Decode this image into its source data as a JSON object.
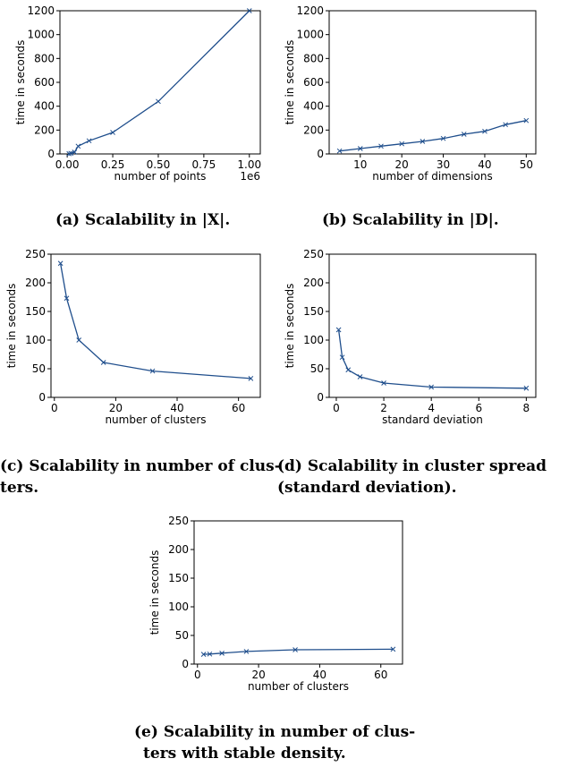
{
  "captions": {
    "a": "(a) Scalability in |X|.",
    "b": "(b) Scalability in |D|.",
    "c_line1": "(c) Scalability in number of clus-",
    "c_line2": "ters.",
    "d_line1": "(d) Scalability in cluster spread",
    "d_line2": "(standard deviation).",
    "e_line1": "(e) Scalability in number of clus-",
    "e_line2": "ters with stable density."
  },
  "colors": {
    "series": "#1f4e8c",
    "axis": "#000000"
  },
  "chart_data": [
    {
      "id": "a",
      "type": "line",
      "xlabel": "number of points",
      "ylabel": "time in seconds",
      "xlim": [
        -0.04,
        1.06
      ],
      "ylim": [
        0,
        1200
      ],
      "xticks": [
        0.0,
        0.25,
        0.5,
        0.75,
        1.0
      ],
      "xtick_labels": [
        "0.00",
        "0.25",
        "0.50",
        "0.75",
        "1.00"
      ],
      "yticks": [
        0,
        200,
        400,
        600,
        800,
        1000,
        1200
      ],
      "ytick_labels": [
        "0",
        "200",
        "400",
        "600",
        "800",
        "1000",
        "1200"
      ],
      "x_offset_label": "1e6",
      "marker": "x",
      "x": [
        0.01,
        0.02,
        0.04,
        0.06,
        0.12,
        0.25,
        0.5,
        1.0
      ],
      "y": [
        2,
        5,
        15,
        65,
        110,
        180,
        440,
        1200
      ]
    },
    {
      "id": "b",
      "type": "line",
      "xlabel": "number of dimensions",
      "ylabel": "time in seconds",
      "xlim": [
        2.5,
        52.3
      ],
      "ylim": [
        0,
        1200
      ],
      "xticks": [
        10,
        20,
        30,
        40,
        50
      ],
      "xtick_labels": [
        "10",
        "20",
        "30",
        "40",
        "50"
      ],
      "yticks": [
        0,
        200,
        400,
        600,
        800,
        1000,
        1200
      ],
      "ytick_labels": [
        "0",
        "200",
        "400",
        "600",
        "800",
        "1000",
        "1200"
      ],
      "marker": "x",
      "x": [
        5,
        10,
        15,
        20,
        25,
        30,
        35,
        40,
        45,
        50
      ],
      "y": [
        25,
        45,
        65,
        85,
        105,
        130,
        165,
        190,
        245,
        280
      ]
    },
    {
      "id": "c",
      "type": "line",
      "xlabel": "number of clusters",
      "ylabel": "time in seconds",
      "xlim": [
        -1.1,
        67.1
      ],
      "ylim": [
        0,
        250
      ],
      "xticks": [
        0,
        20,
        40,
        60
      ],
      "xtick_labels": [
        "0",
        "20",
        "40",
        "60"
      ],
      "yticks": [
        0,
        50,
        100,
        150,
        200,
        250
      ],
      "ytick_labels": [
        "0",
        "50",
        "100",
        "150",
        "200",
        "250"
      ],
      "marker": "x",
      "x": [
        2,
        4,
        8,
        16,
        32,
        64
      ],
      "y": [
        234,
        173,
        100,
        61,
        46,
        33
      ]
    },
    {
      "id": "d",
      "type": "line",
      "xlabel": "standard deviation",
      "ylabel": "time in seconds",
      "xlim": [
        -0.3,
        8.4
      ],
      "ylim": [
        0,
        250
      ],
      "xticks": [
        0,
        2,
        4,
        6,
        8
      ],
      "xtick_labels": [
        "0",
        "2",
        "4",
        "6",
        "8"
      ],
      "yticks": [
        0,
        50,
        100,
        150,
        200,
        250
      ],
      "ytick_labels": [
        "0",
        "50",
        "100",
        "150",
        "200",
        "250"
      ],
      "marker": "x",
      "x": [
        0.1,
        0.25,
        0.5,
        1,
        2,
        4,
        8
      ],
      "y": [
        118,
        70,
        48,
        36,
        25,
        18,
        16
      ]
    },
    {
      "id": "e",
      "type": "line",
      "xlabel": "number of clusters",
      "ylabel": "time in seconds",
      "xlim": [
        -1.1,
        67.1
      ],
      "ylim": [
        0,
        250
      ],
      "xticks": [
        0,
        20,
        40,
        60
      ],
      "xtick_labels": [
        "0",
        "20",
        "40",
        "60"
      ],
      "yticks": [
        0,
        50,
        100,
        150,
        200,
        250
      ],
      "ytick_labels": [
        "0",
        "50",
        "100",
        "150",
        "200",
        "250"
      ],
      "marker": "x",
      "x": [
        2,
        4,
        8,
        16,
        32,
        64
      ],
      "y": [
        17,
        17.5,
        19,
        22,
        25,
        26
      ]
    }
  ]
}
